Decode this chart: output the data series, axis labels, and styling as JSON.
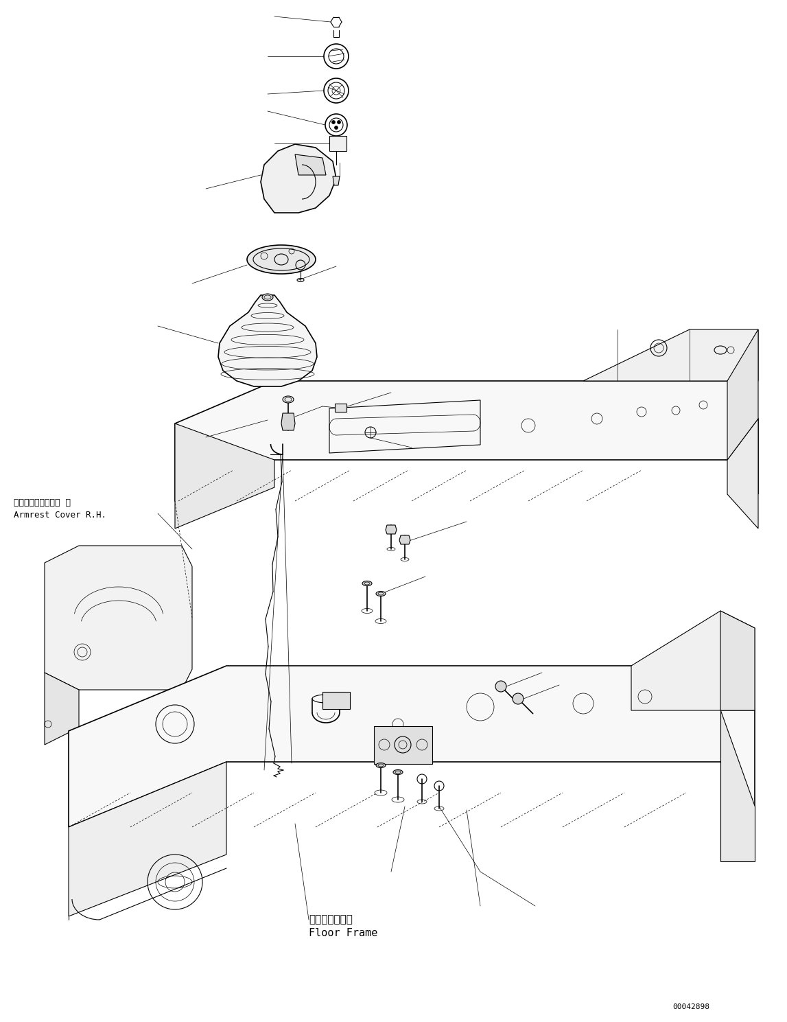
{
  "fig_width": 11.47,
  "fig_height": 14.89,
  "dpi": 100,
  "bg_color": "#ffffff",
  "line_color": "#000000",
  "part_number": "00042898",
  "label_armrest_jp": "アームレストカバー  右",
  "label_armrest_en": "Armrest Cover R.H.",
  "label_floor_jp": "フロアフレーム",
  "label_floor_en": "Floor Frame",
  "font_size_label": 9,
  "font_size_part": 8
}
